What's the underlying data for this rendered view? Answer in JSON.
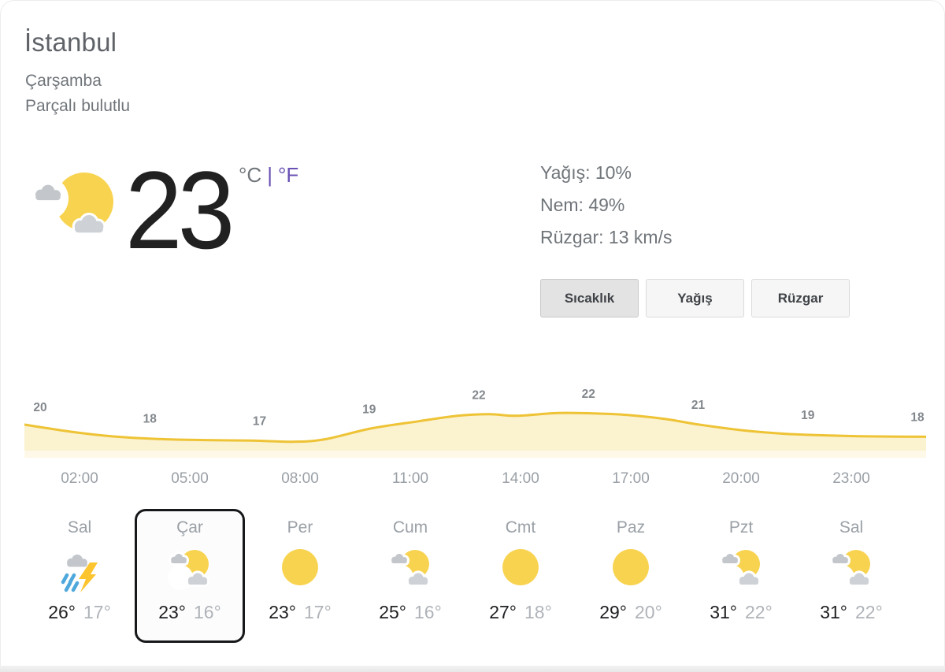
{
  "header": {
    "city": "İstanbul",
    "day_name": "Çarşamba",
    "condition": "Parçalı bulutlu"
  },
  "current": {
    "temperature": "23",
    "unit_celsius": "°C",
    "unit_divider": "|",
    "unit_fahrenheit": "°F",
    "icon": "partly-cloudy",
    "precipitation": "Yağış: 10%",
    "humidity": "Nem: 49%",
    "wind": "Rüzgar: 13 km/s"
  },
  "tabs": [
    {
      "label": "Sıcaklık",
      "selected": true
    },
    {
      "label": "Yağış",
      "selected": false
    },
    {
      "label": "Rüzgar",
      "selected": false
    }
  ],
  "chart_data": {
    "type": "area",
    "title": "Sıcaklık",
    "ylabel": "°C",
    "values": [
      20,
      18,
      17,
      19,
      22,
      22,
      21,
      19,
      18
    ],
    "x_tick_labels": [
      "02:00",
      "05:00",
      "08:00",
      "11:00",
      "14:00",
      "17:00",
      "20:00",
      "23:00"
    ],
    "ylim": [
      16,
      24
    ],
    "grid": false,
    "legend": "none",
    "line_color": "#eec335",
    "fill_color": "#fbf2d0",
    "fill_band_color": "#fdf8e7",
    "label_color": "#83888d",
    "curve_samples": [
      [
        0,
        20.0
      ],
      [
        60,
        18.7
      ],
      [
        110,
        17.9
      ],
      [
        170,
        17.4
      ],
      [
        230,
        17.2
      ],
      [
        290,
        17.1
      ],
      [
        340,
        16.9
      ],
      [
        380,
        17.3
      ],
      [
        440,
        19.3
      ],
      [
        500,
        20.6
      ],
      [
        550,
        21.6
      ],
      [
        590,
        21.9
      ],
      [
        625,
        21.6
      ],
      [
        677,
        22.1
      ],
      [
        730,
        22.0
      ],
      [
        770,
        21.7
      ],
      [
        815,
        21.0
      ],
      [
        857,
        20.0
      ],
      [
        910,
        19.0
      ],
      [
        960,
        18.4
      ],
      [
        1005,
        18.1
      ],
      [
        1060,
        17.9
      ],
      [
        1145,
        17.8
      ]
    ]
  },
  "forecast": {
    "days": [
      {
        "name": "Sal",
        "icon": "thunderstorm",
        "high": "26°",
        "low": "17°",
        "selected": false
      },
      {
        "name": "Çar",
        "icon": "partly-cloudy",
        "high": "23°",
        "low": "16°",
        "selected": true
      },
      {
        "name": "Per",
        "icon": "sunny",
        "high": "23°",
        "low": "17°",
        "selected": false
      },
      {
        "name": "Cum",
        "icon": "partly-cloudy",
        "high": "25°",
        "low": "16°",
        "selected": false
      },
      {
        "name": "Cmt",
        "icon": "sunny",
        "high": "27°",
        "low": "18°",
        "selected": false
      },
      {
        "name": "Paz",
        "icon": "sunny",
        "high": "29°",
        "low": "20°",
        "selected": false
      },
      {
        "name": "Pzt",
        "icon": "partly-cloudy",
        "high": "31°",
        "low": "22°",
        "selected": false
      },
      {
        "name": "Sal",
        "icon": "partly-cloudy",
        "high": "31°",
        "low": "22°",
        "selected": false
      }
    ]
  },
  "colors": {
    "sun": "#f8d34f",
    "cloud_back": "#c3c7cb",
    "cloud_front": "#ced2d6",
    "lightning": "#fcc42e",
    "rain": "#4fa8dc",
    "link_purple": "#6a52b5",
    "text_gray": "#70757a"
  }
}
